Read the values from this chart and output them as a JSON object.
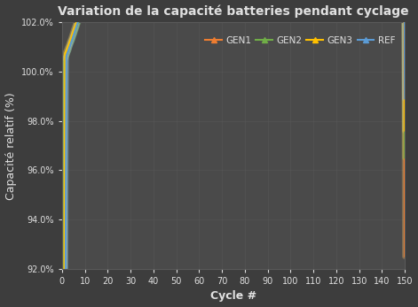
{
  "title": "Variation de la capacité batteries pendant cyclage",
  "xlabel": "Cycle #",
  "ylabel": "Capacité relatif (%)",
  "background_color": "#3d3d3d",
  "plot_bg_color": "#4a4a4a",
  "grid_color": "#5a5a5a",
  "text_color": "#e0e0e0",
  "ylim": [
    92.0,
    102.0
  ],
  "xlim": [
    0,
    150
  ],
  "xticks": [
    0,
    10,
    20,
    30,
    40,
    50,
    60,
    70,
    80,
    90,
    100,
    110,
    120,
    130,
    140,
    150
  ],
  "yticks": [
    92.0,
    94.0,
    96.0,
    98.0,
    100.0,
    102.0
  ],
  "series": {
    "REF": {
      "color": "#5B9BD5",
      "glow": "#88ccff",
      "lw": 1.5
    },
    "GEN1": {
      "color": "#ED7D31",
      "glow": "#ffbb66",
      "lw": 1.5
    },
    "GEN2": {
      "color": "#70AD47",
      "glow": "#99dd55",
      "lw": 1.5
    },
    "GEN3": {
      "color": "#FFC000",
      "glow": "#ffe066",
      "lw": 1.5
    }
  },
  "title_fontsize": 10,
  "label_fontsize": 9,
  "tick_fontsize": 7,
  "legend_fontsize": 7.5
}
